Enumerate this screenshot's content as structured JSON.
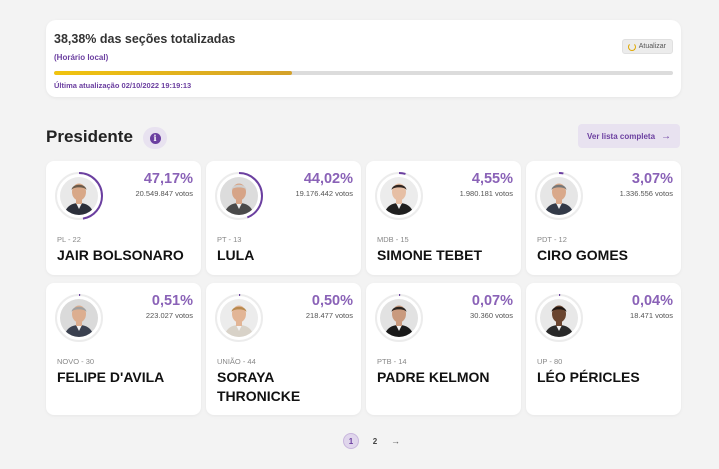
{
  "status": {
    "title": "38,38% das seções totalizadas",
    "subtitle": "(Horário local)",
    "refresh_label": "Atualizar",
    "progress": 0.3838,
    "last_update": "Última atualização 02/10/2022 19:19:13"
  },
  "section": {
    "title": "Presidente",
    "info_icon": "info-icon",
    "list_button_label": "Ver lista completa",
    "list_button_arrow": "→"
  },
  "candidates": [
    {
      "party": "PL - 22",
      "name": "JAIR BOLSONARO",
      "percent": "47,17%",
      "votes": "20.549.847 votos",
      "share": 0.4717,
      "skin": "#d8a888",
      "hair": "#6a5a4a",
      "suit": "#2b2f3a",
      "bg": "#e9e9e9"
    },
    {
      "party": "PT - 13",
      "name": "LULA",
      "percent": "44,02%",
      "votes": "19.176.442 votos",
      "share": 0.4402,
      "skin": "#d6a487",
      "hair": "#cfcfcf",
      "suit": "#4a4a4a",
      "bg": "#dcdcdc"
    },
    {
      "party": "MDB - 15",
      "name": "SIMONE TEBET",
      "percent": "4,55%",
      "votes": "1.980.181 votos",
      "share": 0.0455,
      "skin": "#e6bfa5",
      "hair": "#2e2420",
      "suit": "#1f1f1f",
      "bg": "#ececec"
    },
    {
      "party": "PDT - 12",
      "name": "CIRO GOMES",
      "percent": "3,07%",
      "votes": "1.336.556 votos",
      "share": 0.0307,
      "skin": "#d9a98b",
      "hair": "#777777",
      "suit": "#333a48",
      "bg": "#e6e6e6"
    },
    {
      "party": "NOVO - 30",
      "name": "FELIPE D'AVILA",
      "percent": "0,51%",
      "votes": "223.027 votos",
      "share": 0.0051,
      "skin": "#dcae90",
      "hair": "#a0a0a0",
      "suit": "#3b4150",
      "bg": "#dadada"
    },
    {
      "party": "UNIÃO - 44",
      "name": "SORAYA THRONICKE",
      "percent": "0,50%",
      "votes": "218.477 votos",
      "share": 0.005,
      "skin": "#e2b596",
      "hair": "#b8894e",
      "suit": "#d8d2c8",
      "bg": "#ececec"
    },
    {
      "party": "PTB - 14",
      "name": "PADRE KELMON",
      "percent": "0,07%",
      "votes": "30.360 votos",
      "share": 0.0007,
      "skin": "#c99a7e",
      "hair": "#2a2420",
      "suit": "#1a1a1a",
      "bg": "#e2e2e2"
    },
    {
      "party": "UP - 80",
      "name": "LÉO PÉRICLES",
      "percent": "0,04%",
      "votes": "18.471 votos",
      "share": 0.0004,
      "skin": "#6a4530",
      "hair": "#1e1612",
      "suit": "#2a2a2a",
      "bg": "#e8e8e8"
    }
  ],
  "pagination": {
    "pages": [
      "1",
      "2"
    ],
    "current": "1",
    "next_arrow": "→"
  },
  "colors": {
    "accent": "#6b3fa0",
    "percent": "#8a62b7",
    "progress_start": "#f1c40f",
    "progress_end": "#d4a12a"
  }
}
